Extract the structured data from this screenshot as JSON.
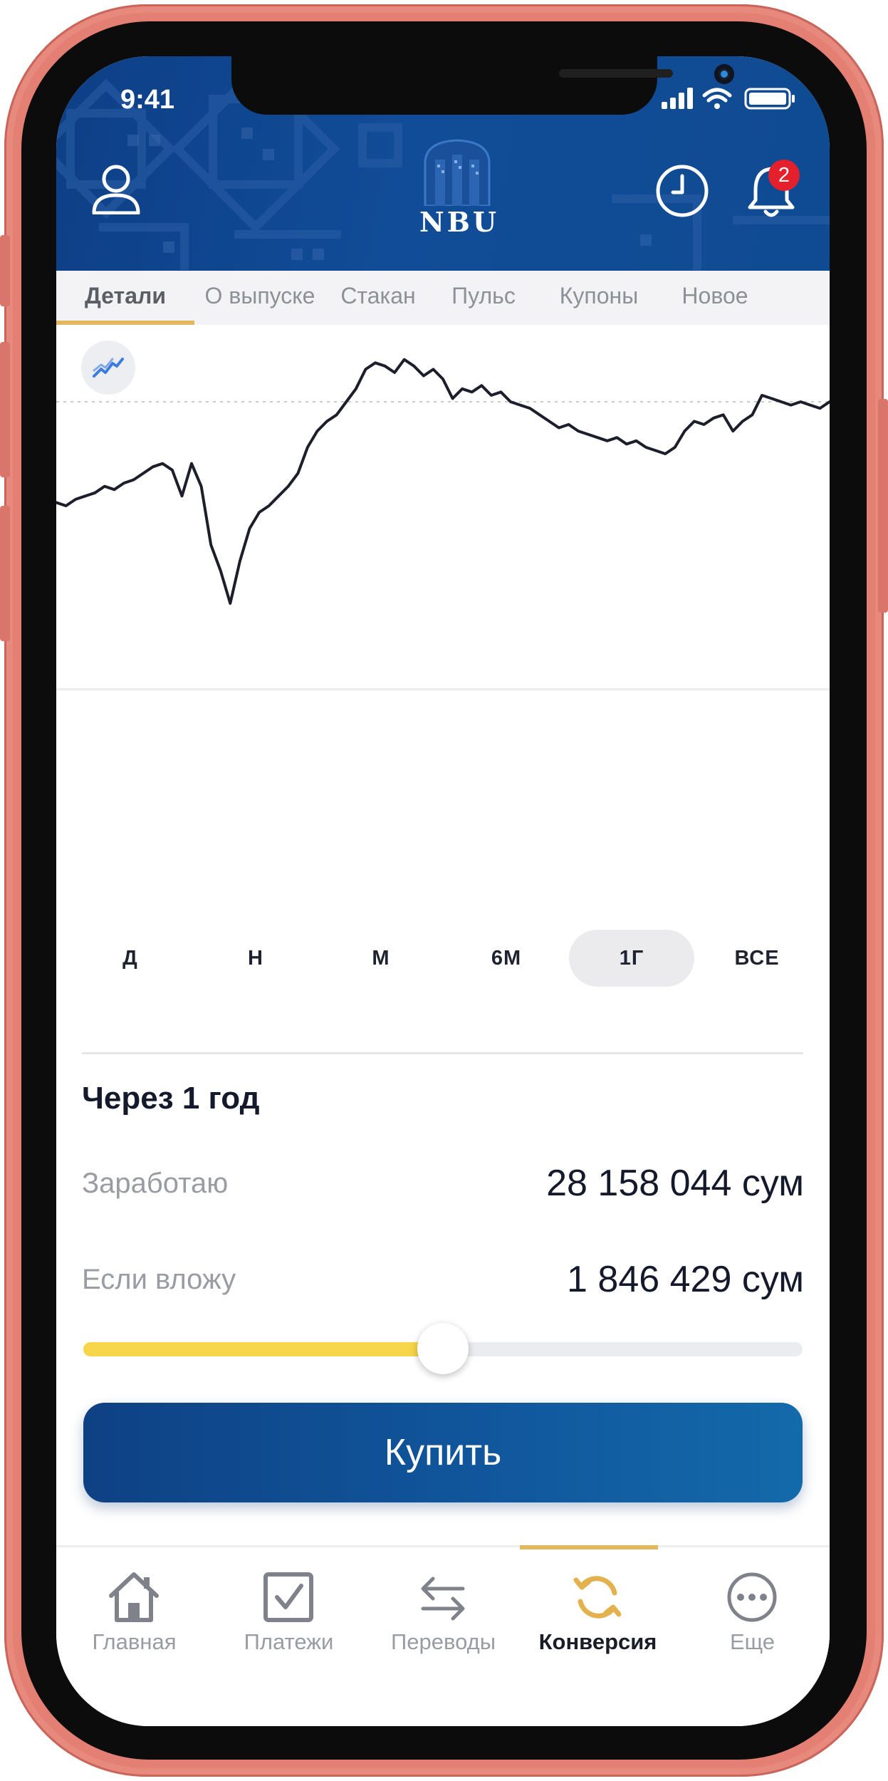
{
  "status_bar": {
    "time": "9:41"
  },
  "header": {
    "logo_text": "NBU",
    "notification_count": "2",
    "icons": [
      "user-icon",
      "clock-icon",
      "bell-icon"
    ]
  },
  "tabs": [
    {
      "label": "Детали",
      "active": true
    },
    {
      "label": "О выпуске",
      "active": false
    },
    {
      "label": "Стакан",
      "active": false
    },
    {
      "label": "Пульс",
      "active": false
    },
    {
      "label": "Купоны",
      "active": false
    },
    {
      "label": "Новое",
      "active": false
    }
  ],
  "chart_data": {
    "type": "line",
    "title": "",
    "xlabel": "",
    "ylabel": "",
    "grid": false,
    "x": [
      0,
      1,
      2,
      3,
      4,
      5,
      6,
      7,
      8,
      9,
      10,
      11,
      12,
      13,
      14,
      15,
      16,
      17,
      18,
      19,
      20,
      21,
      22,
      23,
      24,
      25,
      26,
      27,
      28,
      29,
      30,
      31,
      32,
      33,
      34,
      35,
      36,
      37,
      38,
      39,
      40,
      41,
      42,
      43,
      44,
      45,
      46,
      47,
      48,
      49,
      50,
      51,
      52,
      53,
      54,
      55,
      56,
      57,
      58,
      59,
      60,
      61,
      62,
      63,
      64,
      65,
      66,
      67,
      68,
      69,
      70,
      71,
      72,
      73,
      74,
      75,
      76,
      77,
      78,
      79,
      80
    ],
    "series": [
      {
        "values": [
          33,
          32,
          34,
          35,
          36,
          38,
          37,
          39,
          40,
          42,
          44,
          45,
          43,
          35,
          45,
          38,
          20,
          12,
          2,
          15,
          25,
          30,
          32,
          35,
          38,
          42,
          50,
          55,
          58,
          60,
          64,
          68,
          74,
          76,
          75,
          73,
          77,
          75,
          72,
          74,
          71,
          65,
          68,
          67,
          69,
          66,
          67,
          64,
          63,
          62,
          60,
          58,
          56,
          57,
          55,
          54,
          53,
          52,
          53,
          51,
          52,
          50,
          49,
          48,
          50,
          55,
          58,
          57,
          59,
          60,
          55,
          58,
          60,
          66,
          65,
          64,
          63,
          64,
          63,
          62,
          64
        ]
      }
    ],
    "reference_line": true,
    "ylim": [
      0,
      80
    ]
  },
  "periods": [
    {
      "label": "Д",
      "active": false
    },
    {
      "label": "Н",
      "active": false
    },
    {
      "label": "М",
      "active": false
    },
    {
      "label": "6М",
      "active": false
    },
    {
      "label": "1Г",
      "active": true
    },
    {
      "label": "ВСЕ",
      "active": false
    }
  ],
  "forecast": {
    "title": "Через 1 год",
    "earn_label": "Заработаю",
    "earn_value": "28 158 044 сум",
    "invest_label": "Если вложу",
    "invest_value": "1 846 429 сум",
    "slider_fraction": 0.5
  },
  "buy_button": {
    "label": "Купить"
  },
  "bottom_nav": [
    {
      "label": "Главная",
      "icon": "home-icon",
      "active": false
    },
    {
      "label": "Платежи",
      "icon": "checkbox-icon",
      "active": false
    },
    {
      "label": "Переводы",
      "icon": "transfer-arrows-icon",
      "active": false
    },
    {
      "label": "Конверсия",
      "icon": "conversion-icon",
      "active": true
    },
    {
      "label": "Еще",
      "icon": "more-dots-icon",
      "active": false
    }
  ],
  "colors": {
    "header_blue": "#0f4791",
    "accent_gold": "#e3b75e",
    "slider_yellow": "#f6d54a",
    "button_blue": "#11589e",
    "badge_red": "#e3202b"
  }
}
